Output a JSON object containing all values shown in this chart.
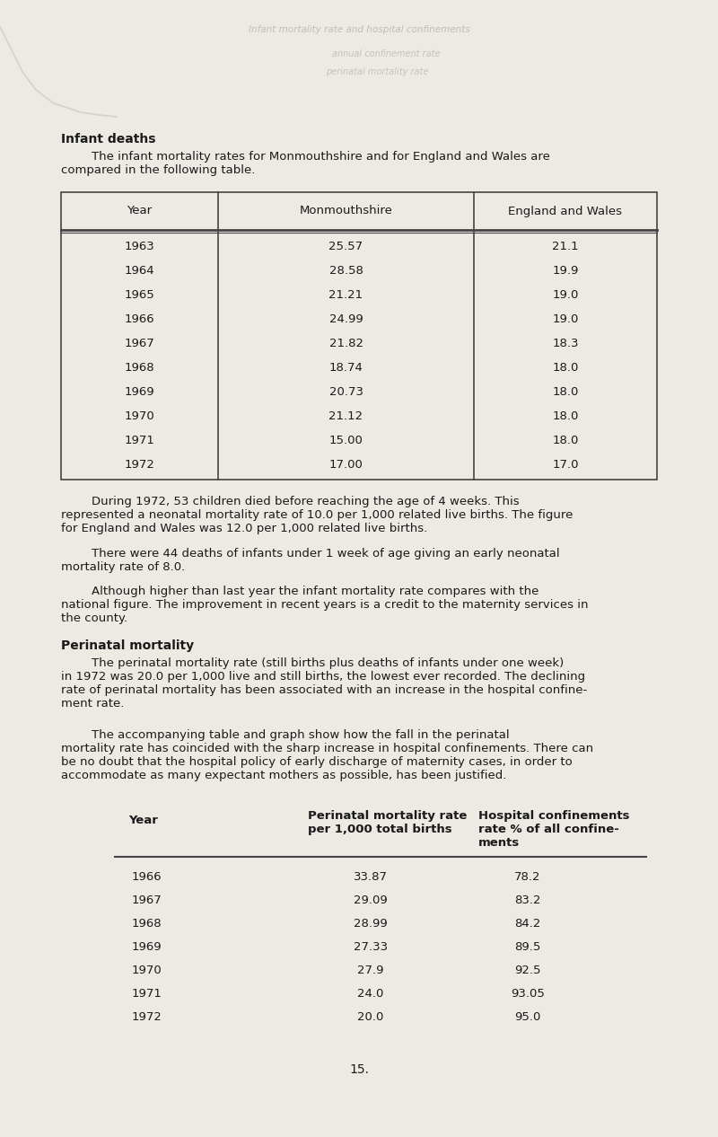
{
  "page_bg": "#edeae4",
  "section1_title": "Infant deaths",
  "section1_intro": "        The infant mortality rates for Monmouthshire and for England and Wales are\ncompared in the following table.",
  "table1_headers": [
    "Year",
    "Monmouthshire",
    "England and Wales"
  ],
  "table1_rows": [
    [
      "1963",
      "25.57",
      "21.1"
    ],
    [
      "1964",
      "28.58",
      "19.9"
    ],
    [
      "1965",
      "21.21",
      "19.0"
    ],
    [
      "1966",
      "24.99",
      "19.0"
    ],
    [
      "1967",
      "21.82",
      "18.3"
    ],
    [
      "1968",
      "18.74",
      "18.0"
    ],
    [
      "1969",
      "20.73",
      "18.0"
    ],
    [
      "1970",
      "21.12",
      "18.0"
    ],
    [
      "1971",
      "15.00",
      "18.0"
    ],
    [
      "1972",
      "17.00",
      "17.0"
    ]
  ],
  "para1": "        During 1972, 53 children died before reaching the age of 4 weeks. This\nrepresented a neonatal mortality rate of 10.0 per 1,000 related live births. The figure\nfor England and Wales was 12.0 per 1,000 related live births.",
  "para2": "        There were 44 deaths of infants under 1 week of age giving an early neonatal\nmortality rate of 8.0.",
  "para3": "        Although higher than last year the infant mortality rate compares with the\nnational figure. The improvement in recent years is a credit to the maternity services in\nthe county.",
  "section2_title": "Perinatal mortality",
  "section2_para1": "        The perinatal mortality rate (still births plus deaths of infants under one week)\nin 1972 was 20.0 per 1,000 live and still births, the lowest ever recorded. The declining\nrate of perinatal mortality has been associated with an increase in the hospital confine-\nment rate.",
  "section2_para2": "        The accompanying table and graph show how the fall in the perinatal\nmortality rate has coincided with the sharp increase in hospital confinements. There can\nbe no doubt that the hospital policy of early discharge of maternity cases, in order to\naccommodate as many expectant mothers as possible, has been justified.",
  "table2_col1_header": "Year",
  "table2_col2_header": "Perinatal mortality rate\nper 1,000 total births",
  "table2_col3_header": "Hospital confinements\nrate % of all confine-\nments",
  "table2_rows": [
    [
      "1966",
      "33.87",
      "78.2"
    ],
    [
      "1967",
      "29.09",
      "83.2"
    ],
    [
      "1968",
      "28.99",
      "84.2"
    ],
    [
      "1969",
      "27.33",
      "89.5"
    ],
    [
      "1970",
      "27.9",
      "92.5"
    ],
    [
      "1971",
      "24.0",
      "93.05"
    ],
    [
      "1972",
      "20.0",
      "95.0"
    ]
  ],
  "page_number": "15.",
  "wm1": "Infant mortality rate and hospital confinements",
  "wm2": "annual confinement rate",
  "wm3": "perinatal mortality rate"
}
